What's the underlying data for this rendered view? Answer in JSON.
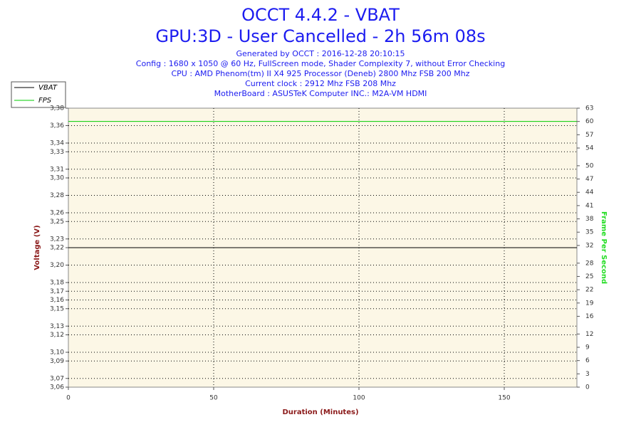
{
  "chart_data": {
    "type": "line",
    "title": "OCCT 4.4.2 - VBAT",
    "subtitle": "GPU:3D - User Cancelled - 2h 56m 08s",
    "info": [
      "Generated by OCCT : 2016-12-28 20:10:15",
      "Config : 1680 x 1050 @ 60 Hz, FullScreen mode, Shader Complexity 7, without Error Checking",
      "CPU : AMD Phenom(tm) II X4 925 Processor (Deneb) 2800 Mhz FSB 200 Mhz",
      "Current clock : 2912 Mhz FSB 208 Mhz",
      "MotherBoard : ASUSTeK Computer INC.: M2A-VM HDMI"
    ],
    "xlabel": "Duration (Minutes)",
    "ylabel": "Voltage (V)",
    "y2label": "Frame Per Second",
    "x": [
      0,
      175
    ],
    "series": [
      {
        "name": "VBAT",
        "color": "#000000",
        "values": [
          3.22,
          3.22
        ]
      },
      {
        "name": "FPS",
        "color": "#00cc00",
        "values": [
          60,
          60
        ],
        "axis": "y2"
      }
    ],
    "xlim": [
      0,
      175
    ],
    "xticks": [
      0,
      50,
      100,
      150
    ],
    "ylim": [
      3.06,
      3.38
    ],
    "yticks": [
      {
        "value": 3.06,
        "label": "3,06"
      },
      {
        "value": 3.07,
        "label": "3,07"
      },
      {
        "value": 3.09,
        "label": "3,09"
      },
      {
        "value": 3.1,
        "label": "3,10"
      },
      {
        "value": 3.12,
        "label": "3,12"
      },
      {
        "value": 3.13,
        "label": "3,13"
      },
      {
        "value": 3.15,
        "label": "3,15"
      },
      {
        "value": 3.16,
        "label": "3,16"
      },
      {
        "value": 3.17,
        "label": "3,17"
      },
      {
        "value": 3.18,
        "label": "3,18"
      },
      {
        "value": 3.2,
        "label": "3,20"
      },
      {
        "value": 3.22,
        "label": "3,22"
      },
      {
        "value": 3.23,
        "label": "3,23"
      },
      {
        "value": 3.25,
        "label": "3,25"
      },
      {
        "value": 3.26,
        "label": "3,26"
      },
      {
        "value": 3.28,
        "label": "3,28"
      },
      {
        "value": 3.3,
        "label": "3,30"
      },
      {
        "value": 3.31,
        "label": "3,31"
      },
      {
        "value": 3.33,
        "label": "3,33"
      },
      {
        "value": 3.34,
        "label": "3,34"
      },
      {
        "value": 3.36,
        "label": "3,36"
      },
      {
        "value": 3.38,
        "label": "3,38"
      }
    ],
    "y2lim": [
      0,
      63
    ],
    "y2ticks": [
      0,
      3,
      6,
      9,
      12,
      16,
      19,
      22,
      25,
      28,
      32,
      35,
      38,
      41,
      44,
      47,
      50,
      54,
      57,
      60,
      63
    ],
    "grid": true
  }
}
